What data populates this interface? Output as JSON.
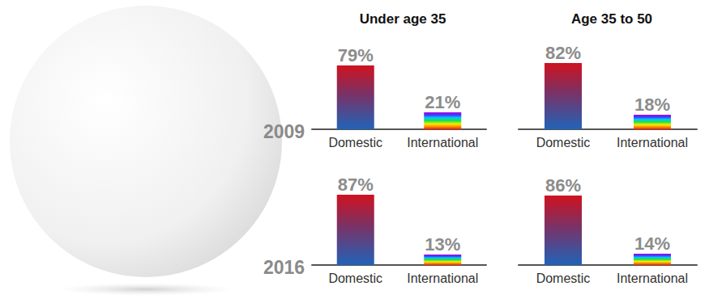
{
  "chart_data": {
    "type": "bar",
    "columns": [
      "Under age 35",
      "Age 35 to 50"
    ],
    "categories": [
      "Domestic",
      "International"
    ],
    "rows": [
      {
        "label": "2009",
        "panels": [
          {
            "values": [
              79,
              21
            ],
            "value_labels": [
              "79%",
              "21%"
            ]
          },
          {
            "values": [
              82,
              18
            ],
            "value_labels": [
              "82%",
              "18%"
            ]
          }
        ]
      },
      {
        "label": "2016",
        "panels": [
          {
            "values": [
              87,
              13
            ],
            "value_labels": [
              "87%",
              "13%"
            ]
          },
          {
            "values": [
              86,
              14
            ],
            "value_labels": [
              "86%",
              "14%"
            ]
          }
        ]
      }
    ],
    "ylim": [
      0,
      100
    ],
    "data_labels": true,
    "tick_labels": "x"
  }
}
